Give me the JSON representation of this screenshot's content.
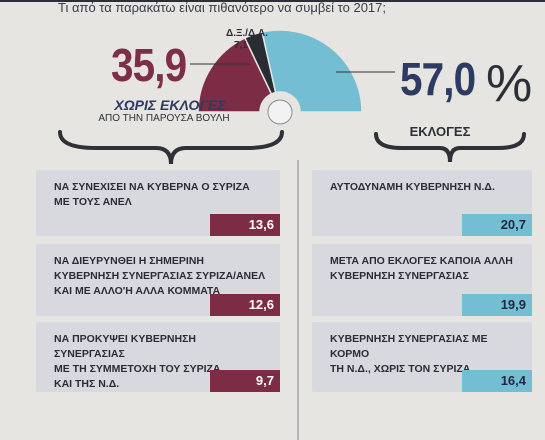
{
  "question": "Τι από τα παρακάτω είναι πιθανότερο να συμβεί το 2017;",
  "summary": {
    "no_elections_value": "35,9",
    "elections_value": "57,0",
    "percent_sign": "%",
    "dk_na_label": "Δ.Ξ./Δ.Α.",
    "dk_na_value": "7,1",
    "no_elections_header": "ΧΩΡΙΣ ΕΚΛΟΓΕΣ",
    "no_elections_sub": "ΑΠΟ ΤΗΝ ΠΑΡΟΥΣΑ ΒΟΥΛΗ",
    "elections_header": "ΕΚΛΟΓΕΣ"
  },
  "colors": {
    "no_elections": "#7c2c44",
    "elections": "#74bed4",
    "dk_na": "#2a2c33",
    "panel": "#d7d9df"
  },
  "chart_data": [
    {
      "type": "pie",
      "categories": [
        "ΧΩΡΙΣ ΕΚΛΟΓΕΣ",
        "ΕΚΛΟΓΕΣ",
        "Δ.Ξ./Δ.Α."
      ],
      "values": [
        35.9,
        57.0,
        7.1
      ],
      "title": "",
      "style": "half-donut"
    },
    {
      "type": "bar",
      "group": "ΧΩΡΙΣ ΕΚΛΟΓΕΣ",
      "categories": [
        "ΝΑ ΣΥΝΕΧΙΣΕΙ ΝΑ ΚΥΒΕΡΝΑ Ο ΣΥΡΙΖΑ ΜΕ ΤΟΥΣ ΑΝΕΛ",
        "ΝΑ ΔΙΕΥΡΥΝΘΕΙ Η ΣΗΜΕΡΙΝΗ ΚΥΒΕΡΝΗΣΗ ΣΥΝΕΡΓΑΣΙΑΣ ΣΥΡΙΖΑ/ΑΝΕΛ ΚΑΙ ΜΕ ΑΛΛΟ'Η ΑΛΛΑ ΚΟΜΜΑΤΑ",
        "ΝΑ ΠΡΟΚΥΨΕΙ ΚΥΒΕΡΝΗΣΗ ΣΥΝΕΡΓΑΣΙΑΣ ΜΕ ΤΗ ΣΥΜΜΕΤΟΧΗ ΤΟΥ ΣΥΡΙΖΑ ΚΑΙ ΤΗΣ Ν.Δ."
      ],
      "values": [
        13.6,
        12.6,
        9.7
      ],
      "labels": [
        "13,6",
        "12,6",
        "9,7"
      ],
      "lines": [
        [
          "ΝΑ ΣΥΝΕΧΙΣΕΙ ΝΑ ΚΥΒΕΡΝΑ Ο ΣΥΡΙΖΑ",
          "ΜΕ ΤΟΥΣ ΑΝΕΛ"
        ],
        [
          "ΝΑ ΔΙΕΥΡΥΝΘΕΙ Η ΣΗΜΕΡΙΝΗ",
          "ΚΥΒΕΡΝΗΣΗ ΣΥΝΕΡΓΑΣΙΑΣ ΣΥΡΙΖΑ/ΑΝΕΛ",
          "ΚΑΙ ΜΕ ΑΛΛΟ'Η ΑΛΛΑ ΚΟΜΜΑΤΑ"
        ],
        [
          "ΝΑ ΠΡΟΚΥΨΕΙ ΚΥΒΕΡΝΗΣΗ ΣΥΝΕΡΓΑΣΙΑΣ",
          "ΜΕ ΤΗ ΣΥΜΜΕΤΟΧΗ ΤΟΥ ΣΥΡΙΖΑ",
          "ΚΑΙ ΤΗΣ Ν.Δ."
        ]
      ]
    },
    {
      "type": "bar",
      "group": "ΕΚΛΟΓΕΣ",
      "categories": [
        "ΑΥΤΟΔΥΝΑΜΗ ΚΥΒΕΡΝΗΣΗ Ν.Δ.",
        "ΜΕΤΑ ΑΠΟ ΕΚΛΟΓΕΣ ΚΑΠΟΙΑ ΑΛΛΗ ΚΥΒΕΡΝΗΣΗ ΣΥΝΕΡΓΑΣΙΑΣ",
        "ΚΥΒΕΡΝΗΣΗ ΣΥΝΕΡΓΑΣΙΑΣ ΜΕ ΚΟΡΜΟ ΤΗ Ν.Δ., ΧΩΡΙΣ ΤΟΝ ΣΥΡΙΖΑ"
      ],
      "values": [
        20.7,
        19.9,
        16.4
      ],
      "labels": [
        "20,7",
        "19,9",
        "16,4"
      ],
      "lines": [
        [
          "ΑΥΤΟΔΥΝΑΜΗ ΚΥΒΕΡΝΗΣΗ Ν.Δ."
        ],
        [
          "ΜΕΤΑ ΑΠΟ ΕΚΛΟΓΕΣ ΚΑΠΟΙΑ ΑΛΛΗ",
          "ΚΥΒΕΡΝΗΣΗ ΣΥΝΕΡΓΑΣΙΑΣ"
        ],
        [
          "ΚΥΒΕΡΝΗΣΗ ΣΥΝΕΡΓΑΣΙΑΣ ΜΕ ΚΟΡΜΟ",
          "ΤΗ Ν.Δ., ΧΩΡΙΣ ΤΟΝ ΣΥΡΙΖΑ"
        ]
      ]
    }
  ]
}
